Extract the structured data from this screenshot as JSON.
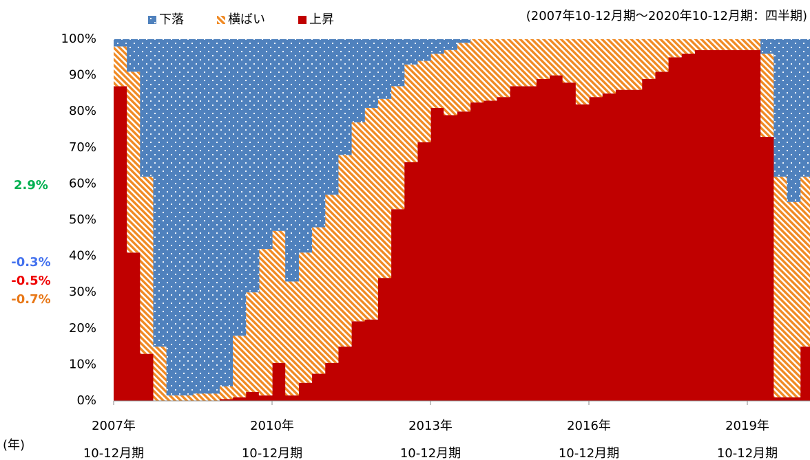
{
  "chart_data": {
    "type": "stacked_step",
    "subtitle": "(2007年10-12月期～2020年10-12月期：四半期)",
    "x_label": "(年)",
    "category_period": "10-12月期",
    "categories": [
      "2007年",
      null,
      null,
      null,
      null,
      null,
      null,
      null,
      null,
      null,
      null,
      null,
      "2010年",
      null,
      null,
      null,
      null,
      null,
      null,
      null,
      null,
      null,
      null,
      null,
      "2013年",
      null,
      null,
      null,
      null,
      null,
      null,
      null,
      null,
      null,
      null,
      null,
      "2016年",
      null,
      null,
      null,
      null,
      null,
      null,
      null,
      null,
      null,
      null,
      null,
      "2019年",
      null,
      null,
      null,
      null
    ],
    "series": [
      {
        "name": "上昇",
        "color": "#c00000",
        "pattern": "solid",
        "values": [
          87,
          41,
          13,
          0,
          0,
          0,
          0,
          0,
          0.5,
          1,
          2.5,
          1.5,
          10.5,
          1.5,
          5,
          7.5,
          10.5,
          15,
          22,
          22.5,
          34,
          53,
          66,
          71.5,
          81,
          79,
          80,
          82.5,
          83,
          84,
          87,
          87,
          89,
          90,
          88,
          82,
          84,
          85,
          86,
          86,
          89,
          91,
          95,
          96,
          97,
          97,
          97,
          97,
          97,
          73,
          1,
          1,
          15
        ]
      },
      {
        "name": "横ばい",
        "color": "#f08a24",
        "pattern": "stripes",
        "values": [
          11,
          50,
          49,
          15,
          1.5,
          1.5,
          2,
          2,
          3.5,
          17,
          27.5,
          40.5,
          36.5,
          31.5,
          36,
          40.5,
          46.5,
          53,
          55,
          58.5,
          49.5,
          34,
          27,
          22.5,
          15,
          18,
          19,
          17.5,
          17,
          16,
          13,
          13,
          11,
          10,
          12,
          18,
          16,
          15,
          14,
          14,
          11,
          9,
          5,
          4,
          3,
          3,
          3,
          3,
          3,
          23,
          61,
          54,
          47
        ]
      },
      {
        "name": "下落",
        "color": "#4f81bd",
        "pattern": "dots",
        "values": [
          2,
          9,
          38,
          85,
          98.5,
          98.5,
          98,
          98,
          96,
          82,
          70,
          58,
          53,
          67,
          59,
          52,
          43,
          32,
          23,
          19,
          16.5,
          13,
          7,
          6,
          4,
          3,
          1,
          0,
          0,
          0,
          0,
          0,
          0,
          0,
          0,
          0,
          0,
          0,
          0,
          0,
          0,
          0,
          0,
          0,
          0,
          0,
          0,
          0,
          0,
          4,
          38,
          45,
          38
        ]
      }
    ],
    "ylim": [
      0,
      100
    ],
    "yticks": [
      {
        "value": 0,
        "label": "0%"
      },
      {
        "value": 10,
        "label": "10%"
      },
      {
        "value": 20,
        "label": "20%"
      },
      {
        "value": 30,
        "label": "30%"
      },
      {
        "value": 40,
        "label": "40%"
      },
      {
        "value": 50,
        "label": "50%"
      },
      {
        "value": 60,
        "label": "60%"
      },
      {
        "value": 70,
        "label": "70%"
      },
      {
        "value": 80,
        "label": "80%"
      },
      {
        "value": 90,
        "label": "90%"
      },
      {
        "value": 100,
        "label": "100%"
      }
    ],
    "annotations": [
      {
        "text": "2.9%",
        "color": "#00b050"
      },
      {
        "text": "-0.3%",
        "color": "#4472ee"
      },
      {
        "text": "-0.5%",
        "color": "#ee0000"
      },
      {
        "text": "-0.7%",
        "color": "#e87818"
      }
    ]
  }
}
